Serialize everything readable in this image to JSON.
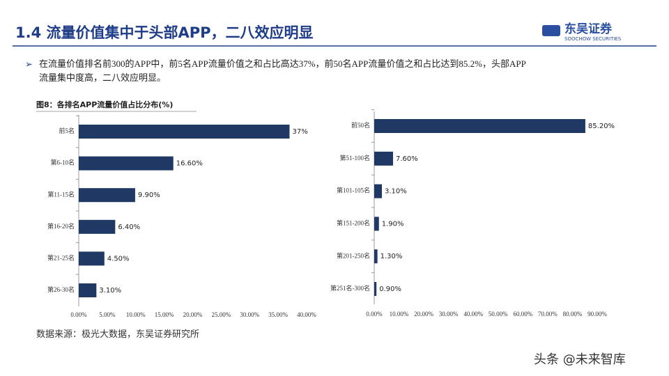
{
  "header": {
    "title": "1.4 流量价值集中于头部APP，二八效应明显",
    "logo_cn": "东吴证券",
    "logo_en": "SOOCHOW SECURITIES"
  },
  "bullet": {
    "lines": [
      "在流量价值排名前300的APP中，前5名APP流量价值之和占比高达37%，前50名APP流量价值之和占比达到85.2%，头部APP",
      "流量集中度高，二八效应明显。"
    ]
  },
  "chart_data": [
    {
      "type": "bar",
      "orientation": "horizontal",
      "title": "图8：各排名APP流量价值占比分布(%)",
      "categories": [
        "前5名",
        "第6-10名",
        "第11-15名",
        "第16-20名",
        "第21-25名",
        "第26-30名"
      ],
      "values": [
        37,
        16.6,
        9.9,
        6.4,
        4.5,
        3.1
      ],
      "value_labels": [
        "37%",
        "16.60%",
        "9.90%",
        "6.40%",
        "4.50%",
        "3.10%"
      ],
      "color": "#1f3864",
      "xlim": [
        0,
        40
      ],
      "xticks": [
        {
          "value": 0,
          "label": "0.00%"
        },
        {
          "value": 5,
          "label": "5.00%"
        },
        {
          "value": 10,
          "label": "10.00%"
        },
        {
          "value": 15,
          "label": "15.00%"
        },
        {
          "value": 20,
          "label": "20.00%"
        },
        {
          "value": 25,
          "label": "25.00%"
        },
        {
          "value": 30,
          "label": "30.00%"
        },
        {
          "value": 35,
          "label": "35.00%"
        },
        {
          "value": 40,
          "label": "40.00%"
        }
      ]
    },
    {
      "type": "bar",
      "orientation": "horizontal",
      "categories": [
        "前50名",
        "第51-100名",
        "第101-105名",
        "第151-200名",
        "第201-250名",
        "第251名-300名"
      ],
      "values": [
        85.2,
        7.6,
        3.1,
        1.9,
        1.3,
        0.9
      ],
      "value_labels": [
        "85.20%",
        "7.60%",
        "3.10%",
        "1.90%",
        "1.30%",
        "0.90%"
      ],
      "color": "#1f3864",
      "xlim": [
        0,
        90
      ],
      "xticks": [
        {
          "value": 0,
          "label": "0.00%"
        },
        {
          "value": 10,
          "label": "10.00%"
        },
        {
          "value": 20,
          "label": "20.00%"
        },
        {
          "value": 30,
          "label": "30.00%"
        },
        {
          "value": 40,
          "label": "40.00%"
        },
        {
          "value": 50,
          "label": "50.00%"
        },
        {
          "value": 60,
          "label": "60.00%"
        },
        {
          "value": 70,
          "label": "70.00%"
        },
        {
          "value": 80,
          "label": "80.00%"
        },
        {
          "value": 90,
          "label": "90.00%"
        }
      ]
    }
  ],
  "source": "数据来源：极光大数据，东吴证券研究所",
  "watermark": "头条 @未来智库"
}
